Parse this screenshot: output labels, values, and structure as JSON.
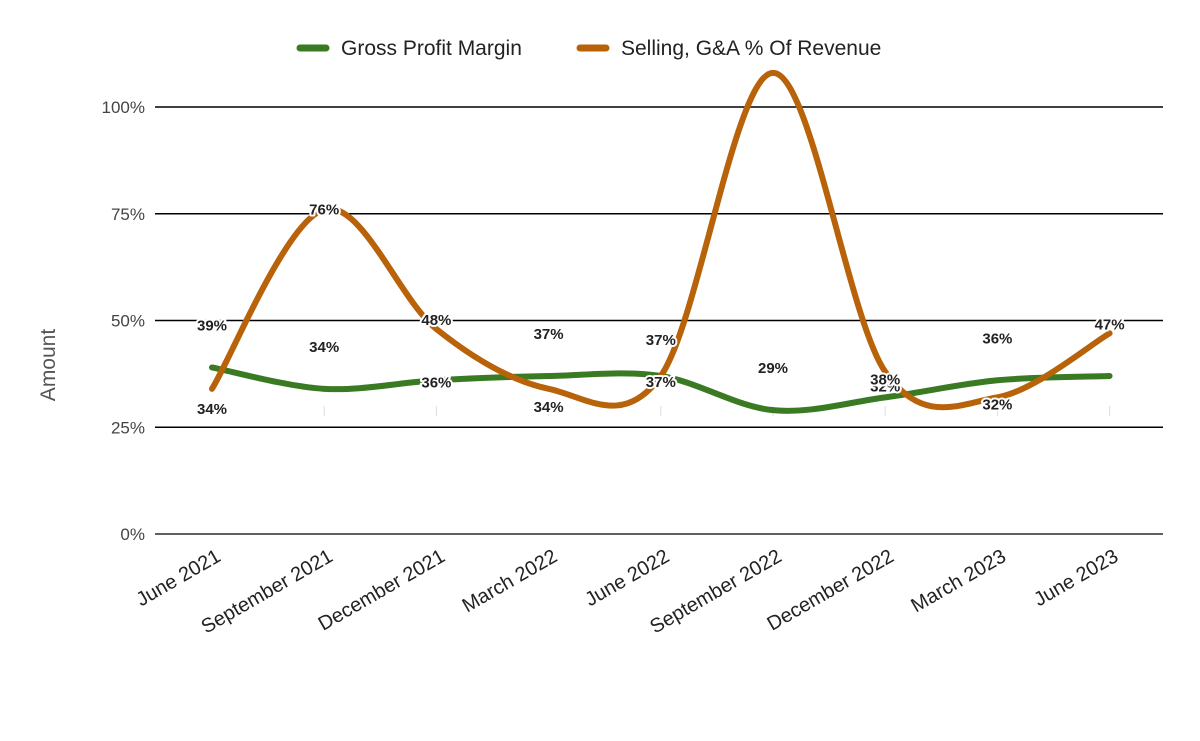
{
  "chart_data": {
    "type": "line",
    "title": "",
    "xlabel": "",
    "ylabel": "Amount",
    "ylim": [
      0,
      100
    ],
    "y_ticks": [
      "0%",
      "25%",
      "50%",
      "75%",
      "100%"
    ],
    "y_tick_values": [
      0,
      25,
      50,
      75,
      100
    ],
    "categories": [
      "June 2021",
      "September 2021",
      "December 2021",
      "March 2022",
      "June 2022",
      "September 2022",
      "December 2022",
      "March 2023",
      "June 2023"
    ],
    "series": [
      {
        "name": "Gross Profit Margin",
        "color": "#3a7a23",
        "values": [
          39,
          34,
          36,
          37,
          37,
          29,
          32,
          36,
          37
        ],
        "labels": [
          "39%",
          "34%",
          "36%",
          "37%",
          "37%",
          "29%",
          "32%",
          "36%",
          ""
        ]
      },
      {
        "name": "Selling, G&A % Of Revenue",
        "color": "#b8620a",
        "values": [
          34,
          76,
          48,
          34,
          37,
          108,
          38,
          32,
          47
        ],
        "labels": [
          "34%",
          "76%",
          "48%",
          "34%",
          "37%",
          "",
          "38%",
          "32%",
          "47%"
        ]
      }
    ],
    "legend_position": "top",
    "grid": true,
    "smooth": true
  }
}
